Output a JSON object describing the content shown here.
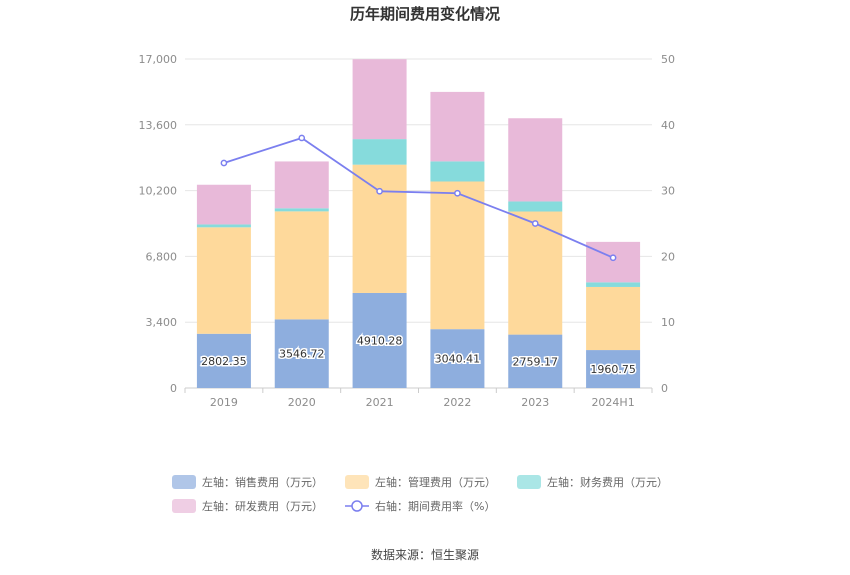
{
  "chart_data": {
    "type": "bar",
    "title": "历年期间费用变化情况",
    "categories": [
      "2019",
      "2020",
      "2021",
      "2022",
      "2023",
      "2024H1"
    ],
    "left_axis": {
      "min": 0,
      "max": 17000,
      "ticks": [
        "0",
        "3,400",
        "6,800",
        "10,200",
        "13,600",
        "17,000"
      ]
    },
    "right_axis": {
      "min": 0,
      "max": 50,
      "ticks": [
        "0",
        "10",
        "20",
        "30",
        "40",
        "50"
      ]
    },
    "grid": true,
    "legend_position": "bottom",
    "series": [
      {
        "name": "左轴：销售费用（万元）",
        "type": "bar",
        "axis": "left",
        "color": "#8eaede",
        "values": [
          2802.35,
          3546.72,
          4910.28,
          3040.41,
          2759.17,
          1960.75
        ],
        "labels": [
          "2802.35",
          "3546.72",
          "4910.28",
          "3040.41",
          "2759.17",
          "1960.75"
        ]
      },
      {
        "name": "左轴：管理费用（万元）",
        "type": "bar",
        "axis": "left",
        "color": "#fed99b",
        "values": [
          5500,
          5580,
          6630,
          7630,
          6360,
          3260
        ]
      },
      {
        "name": "左轴：财务费用（万元）",
        "type": "bar",
        "axis": "left",
        "color": "#86dbdc",
        "values": [
          150,
          160,
          1320,
          1040,
          520,
          240
        ]
      },
      {
        "name": "左轴：研发费用（万元）",
        "type": "bar",
        "axis": "left",
        "color": "#e8b9d9",
        "values": [
          2050,
          2420,
          4130,
          3590,
          4300,
          2090
        ]
      },
      {
        "name": "右轴：期间费用率（%）",
        "type": "line",
        "axis": "right",
        "color": "#7b7fef",
        "values": [
          34.2,
          38.0,
          29.9,
          29.6,
          25.0,
          19.8
        ]
      }
    ]
  },
  "footer": {
    "source": "数据来源：恒生聚源"
  }
}
